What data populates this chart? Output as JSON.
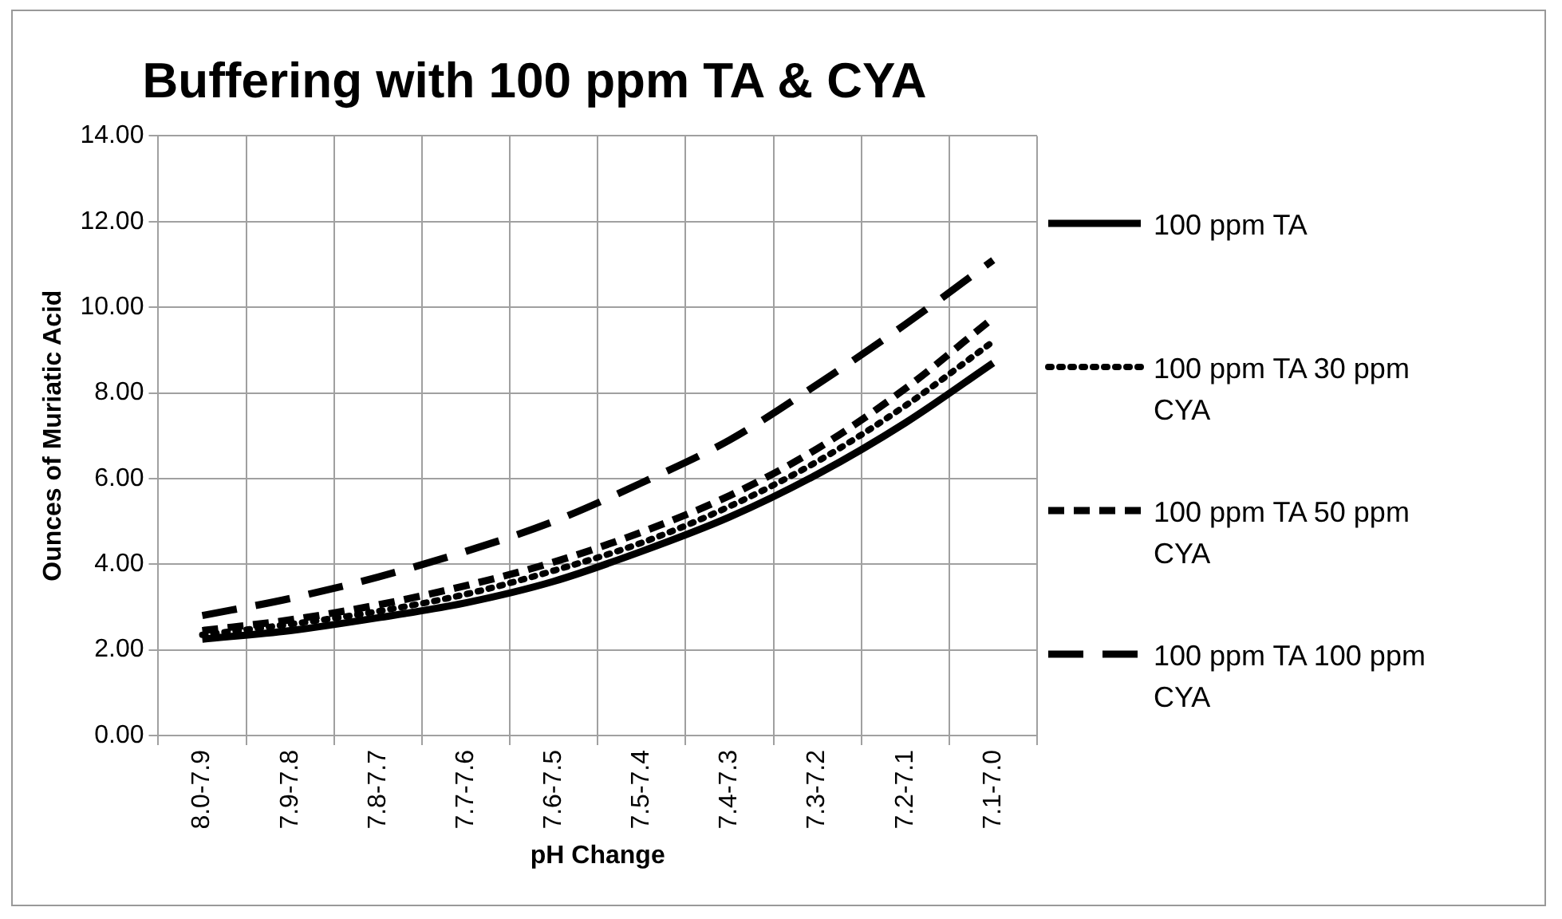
{
  "chart_data": {
    "type": "line",
    "title": "Buffering with 100 ppm TA & CYA",
    "xlabel": "pH Change",
    "ylabel": "Ounces of Muriatic Acid",
    "categories": [
      "8.0-7.9",
      "7.9-7.8",
      "7.8-7.7",
      "7.7-7.6",
      "7.6-7.5",
      "7.5-7.4",
      "7.4-7.3",
      "7.3-7.2",
      "7.2-7.1",
      "7.1-7.0"
    ],
    "series": [
      {
        "name": "100 ppm TA",
        "color": "#000000",
        "line_style": "solid",
        "values": [
          2.25,
          2.45,
          2.75,
          3.1,
          3.6,
          4.3,
          5.1,
          6.1,
          7.3,
          8.7
        ]
      },
      {
        "name": "100 ppm TA 30 ppm CYA",
        "color": "#000000",
        "line_style": "dotted",
        "values": [
          2.35,
          2.6,
          2.9,
          3.3,
          3.85,
          4.5,
          5.35,
          6.4,
          7.7,
          9.2
        ]
      },
      {
        "name": "100 ppm TA 50 ppm CYA",
        "color": "#000000",
        "line_style": "dashed",
        "values": [
          2.45,
          2.7,
          3.05,
          3.5,
          4.05,
          4.75,
          5.6,
          6.7,
          8.1,
          9.75
        ]
      },
      {
        "name": "100 ppm TA 100 ppm CYA",
        "color": "#000000",
        "line_style": "longdash",
        "values": [
          2.8,
          3.2,
          3.7,
          4.3,
          5.0,
          5.9,
          6.9,
          8.2,
          9.6,
          11.1
        ]
      }
    ],
    "ylim": [
      0,
      14
    ],
    "yticks": [
      {
        "value": 0,
        "label": "0.00"
      },
      {
        "value": 2,
        "label": "2.00"
      },
      {
        "value": 4,
        "label": "4.00"
      },
      {
        "value": 6,
        "label": "6.00"
      },
      {
        "value": 8,
        "label": "8.00"
      },
      {
        "value": 10,
        "label": "10.00"
      },
      {
        "value": 12,
        "label": "12.00"
      },
      {
        "value": 14,
        "label": "14.00"
      }
    ],
    "grid": true,
    "legend": "right",
    "marker": "none"
  }
}
